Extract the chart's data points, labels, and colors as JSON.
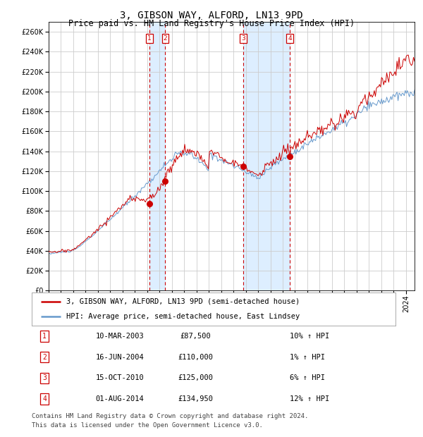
{
  "title": "3, GIBSON WAY, ALFORD, LN13 9PD",
  "subtitle": "Price paid vs. HM Land Registry's House Price Index (HPI)",
  "ylim": [
    0,
    270000
  ],
  "yticks": [
    0,
    20000,
    40000,
    60000,
    80000,
    100000,
    120000,
    140000,
    160000,
    180000,
    200000,
    220000,
    240000,
    260000
  ],
  "hpi_color": "#6699cc",
  "price_color": "#cc0000",
  "dot_color": "#cc0000",
  "vline_color": "#cc0000",
  "shade_color": "#ddeeff",
  "label_color": "#cc0000",
  "grid_color": "#cccccc",
  "bg_color": "#ffffff",
  "transactions": [
    {
      "id": 1,
      "date_str": "10-MAR-2003",
      "date_num": 2003.19,
      "price": 87500,
      "pct": "10%",
      "direction": "↑"
    },
    {
      "id": 2,
      "date_str": "16-JUN-2004",
      "date_num": 2004.46,
      "price": 110000,
      "pct": "1%",
      "direction": "↑"
    },
    {
      "id": 3,
      "date_str": "15-OCT-2010",
      "date_num": 2010.79,
      "price": 125000,
      "pct": "6%",
      "direction": "↑"
    },
    {
      "id": 4,
      "date_str": "01-AUG-2014",
      "date_num": 2014.58,
      "price": 134950,
      "pct": "12%",
      "direction": "↑"
    }
  ],
  "legend_entries": [
    "3, GIBSON WAY, ALFORD, LN13 9PD (semi-detached house)",
    "HPI: Average price, semi-detached house, East Lindsey"
  ],
  "footer_lines": [
    "Contains HM Land Registry data © Crown copyright and database right 2024.",
    "This data is licensed under the Open Government Licence v3.0."
  ],
  "xlim_start": 1995,
  "xlim_end": 2024.7,
  "title_fontsize": 10,
  "subtitle_fontsize": 8.5,
  "tick_fontsize": 7,
  "legend_fontsize": 7.5,
  "table_fontsize": 7.5,
  "footer_fontsize": 6.5
}
